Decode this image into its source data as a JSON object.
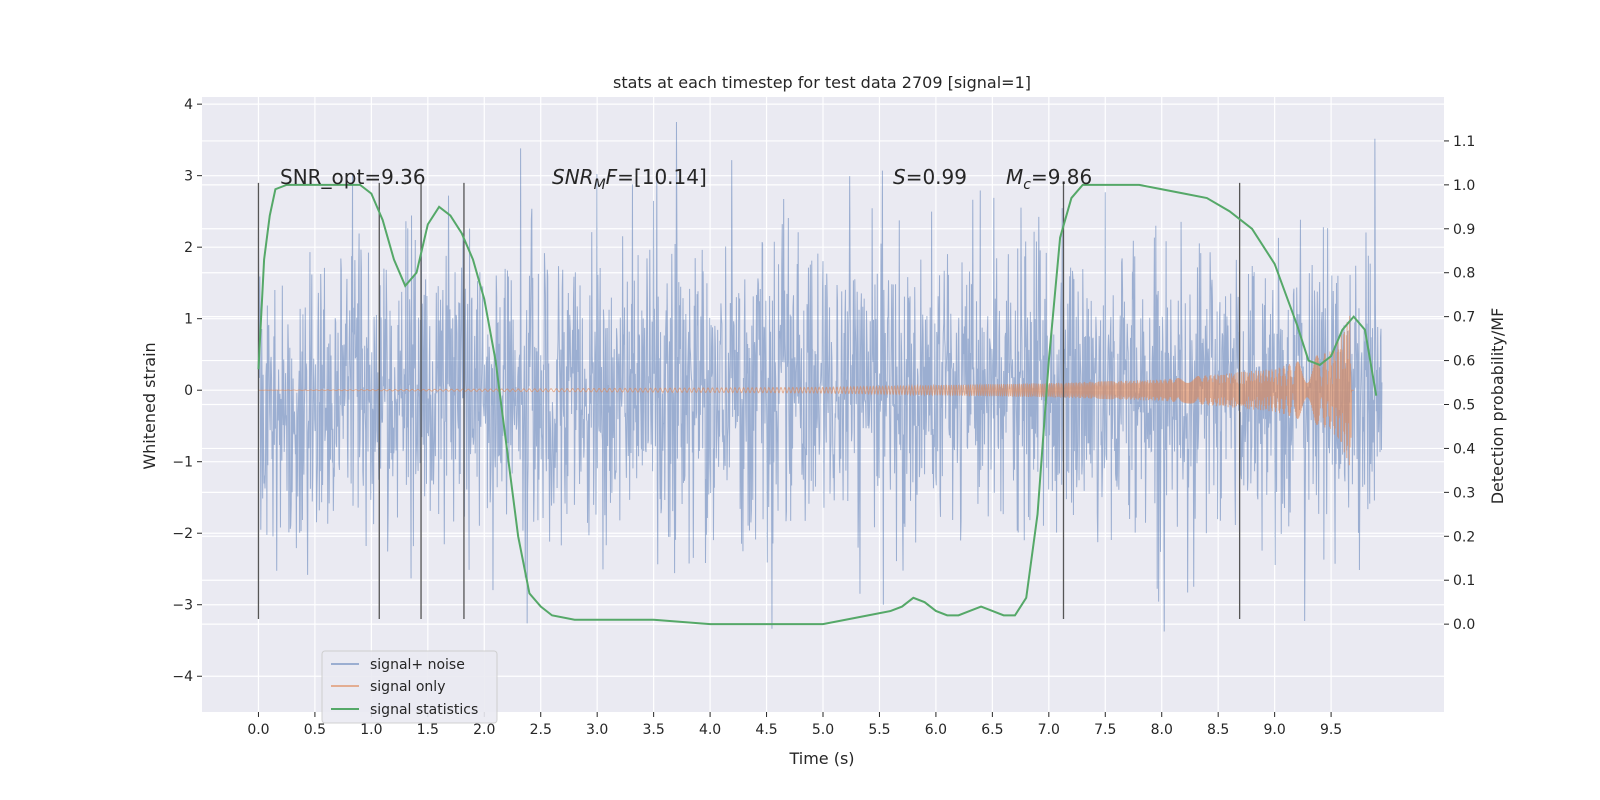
{
  "chart_data": {
    "type": "line",
    "title": "stats at each timestep for test data 2709 [signal=1]",
    "xlabel": "Time (s)",
    "ylabel_left": "Whitened strain",
    "ylabel_right": "Detection probability/MF",
    "xlim": [
      -0.5,
      10.5
    ],
    "ylim_left": [
      -4.5,
      4.1
    ],
    "ylim_right": [
      -0.2,
      1.2
    ],
    "x_ticks": [
      "0.0",
      "0.5",
      "1.0",
      "1.5",
      "2.0",
      "2.5",
      "3.0",
      "3.5",
      "4.0",
      "4.5",
      "5.0",
      "5.5",
      "6.0",
      "6.5",
      "7.0",
      "7.5",
      "8.0",
      "8.5",
      "9.0",
      "9.5"
    ],
    "y_left_ticks": [
      "−4",
      "−3",
      "−2",
      "−1",
      "0",
      "1",
      "2",
      "3",
      "4"
    ],
    "y_right_ticks": [
      "0.0",
      "0.1",
      "0.2",
      "0.3",
      "0.4",
      "0.5",
      "0.6",
      "0.7",
      "0.8",
      "0.9",
      "1.0",
      "1.1"
    ],
    "grid": true,
    "legend_placement": "lower-left",
    "colors": {
      "background": "#eaeaf2",
      "grid": "#ffffff",
      "noise": "#4c72b0",
      "signal": "#dd8452",
      "stats": "#55a868",
      "vline": "#555555"
    },
    "annotations": {
      "snr_opt": "SNR_opt=9.36",
      "snr_mf": "=[10.14]",
      "snr_mf_base": "SNR",
      "snr_mf_sub": "M",
      "snr_mf_tail": "F",
      "s_value": "=0.99",
      "s_label": "S",
      "mc_label": "M",
      "mc_sub": "c",
      "mc_value": "=9.86"
    },
    "vertical_lines_x": [
      0.0,
      1.07,
      1.44,
      1.82,
      7.13,
      8.69
    ],
    "series": [
      {
        "name": "signal+ noise",
        "x_range": [
          0.0,
          9.95
        ],
        "envelope_min": -4.05,
        "envelope_max": 3.75
      },
      {
        "name": "signal only",
        "x_range": [
          0.0,
          9.7
        ],
        "peak_amplitude_x": [
          [
            0.0,
            0.0
          ],
          [
            5.0,
            0.04
          ],
          [
            7.0,
            0.1
          ],
          [
            8.0,
            0.15
          ],
          [
            9.0,
            0.3
          ],
          [
            9.5,
            0.55
          ],
          [
            9.6,
            0.8
          ],
          [
            9.68,
            1.15
          ]
        ]
      },
      {
        "name": "signal statistics",
        "axis": "right",
        "x": [
          0.0,
          0.05,
          0.1,
          0.15,
          0.25,
          0.4,
          0.6,
          0.8,
          0.9,
          1.0,
          1.1,
          1.2,
          1.3,
          1.4,
          1.5,
          1.6,
          1.7,
          1.8,
          1.9,
          2.0,
          2.1,
          2.2,
          2.3,
          2.4,
          2.5,
          2.6,
          2.8,
          3.0,
          3.5,
          4.0,
          4.5,
          5.0,
          5.2,
          5.4,
          5.6,
          5.7,
          5.8,
          5.9,
          6.0,
          6.1,
          6.2,
          6.3,
          6.4,
          6.5,
          6.6,
          6.7,
          6.8,
          6.9,
          7.0,
          7.1,
          7.2,
          7.3,
          7.4,
          7.6,
          7.8,
          8.0,
          8.2,
          8.4,
          8.6,
          8.8,
          9.0,
          9.1,
          9.2,
          9.3,
          9.4,
          9.5,
          9.6,
          9.7,
          9.8,
          9.9
        ],
        "values": [
          0.58,
          0.83,
          0.93,
          0.99,
          1.0,
          1.0,
          1.0,
          1.0,
          1.0,
          0.98,
          0.92,
          0.83,
          0.77,
          0.8,
          0.91,
          0.95,
          0.93,
          0.89,
          0.83,
          0.74,
          0.6,
          0.4,
          0.2,
          0.07,
          0.04,
          0.02,
          0.01,
          0.01,
          0.01,
          0.0,
          0.0,
          0.0,
          0.01,
          0.02,
          0.03,
          0.04,
          0.06,
          0.05,
          0.03,
          0.02,
          0.02,
          0.03,
          0.04,
          0.03,
          0.02,
          0.02,
          0.06,
          0.25,
          0.6,
          0.88,
          0.97,
          1.0,
          1.0,
          1.0,
          1.0,
          0.99,
          0.98,
          0.97,
          0.94,
          0.9,
          0.82,
          0.75,
          0.68,
          0.6,
          0.59,
          0.61,
          0.67,
          0.7,
          0.67,
          0.52
        ]
      }
    ]
  }
}
